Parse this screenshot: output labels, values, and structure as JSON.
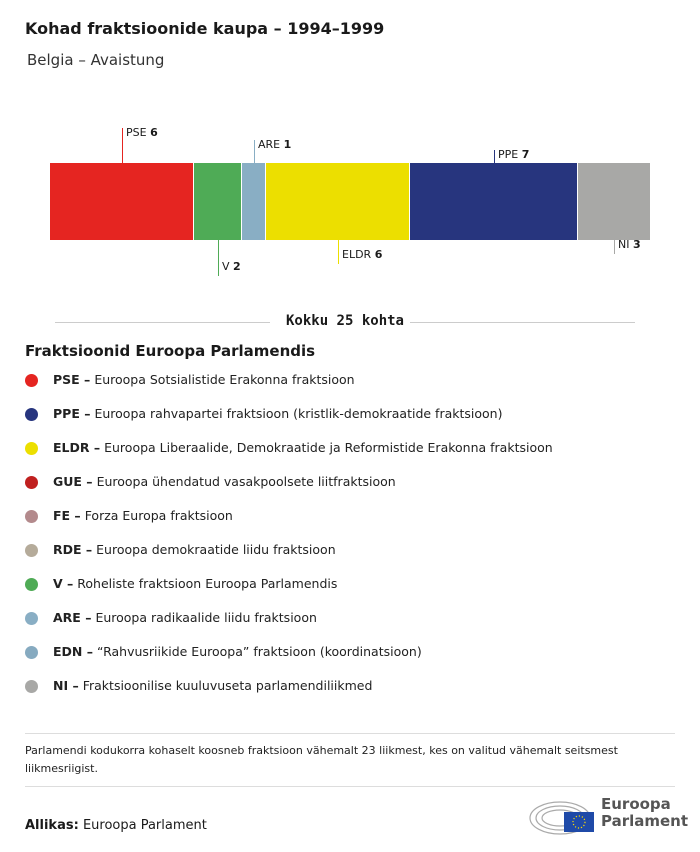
{
  "title": "Kohad fraktsioonide kaupa – 1994–1999",
  "subtitle": "Belgia – Avaistung",
  "chart_data": {
    "type": "stacked-bar",
    "title": "Kohad fraktsioonide kaupa – 1994–1999",
    "subtitle": "Belgia – Avaistung",
    "total_label": "Kokku 25 kohta",
    "total": 25,
    "segments": [
      {
        "name": "PSE",
        "value": 6,
        "color": "#e52521"
      },
      {
        "name": "V",
        "value": 2,
        "color": "#4fab56"
      },
      {
        "name": "ARE",
        "value": 1,
        "color": "#89aec4"
      },
      {
        "name": "ELDR",
        "value": 6,
        "color": "#ecdf00"
      },
      {
        "name": "PPE",
        "value": 7,
        "color": "#27357e"
      },
      {
        "name": "NI",
        "value": 3,
        "color": "#a8a8a6"
      }
    ]
  },
  "legend": {
    "title": "Fraktsioonid Euroopa Parlamendis",
    "items": [
      {
        "code": "PSE –",
        "desc": "Euroopa Sotsialistide Erakonna fraktsioon",
        "color": "#e52521"
      },
      {
        "code": "PPE –",
        "desc": "Euroopa rahvapartei fraktsioon (kristlik-demokraatide fraktsioon)",
        "color": "#27357e"
      },
      {
        "code": "ELDR –",
        "desc": "Euroopa Liberaalide, Demokraatide ja Reformistide Erakonna fraktsioon",
        "color": "#ecdf00"
      },
      {
        "code": "GUE –",
        "desc": "Euroopa ühendatud vasakpoolsete liitfraktsioon",
        "color": "#c0201f"
      },
      {
        "code": "FE –",
        "desc": "Forza Europa fraktsioon",
        "color": "#b38a8c"
      },
      {
        "code": "RDE –",
        "desc": "Euroopa demokraatide liidu fraktsioon",
        "color": "#b5ab9a"
      },
      {
        "code": "V –",
        "desc": "Roheliste fraktsioon Euroopa Parlamendis",
        "color": "#4fab56"
      },
      {
        "code": "ARE –",
        "desc": "Euroopa radikaalide liidu fraktsioon",
        "color": "#89aec4"
      },
      {
        "code": "EDN –",
        "desc": "“Rahvusriikide Euroopa” fraktsioon (koordinatsioon)",
        "color": "#86aac0"
      },
      {
        "code": "NI –",
        "desc": "Fraktsioonilise kuuluvuseta parlamendiliikmed",
        "color": "#a8a8a6"
      }
    ]
  },
  "note": "Parlamendi kodukorra kohaselt koosneb fraktsioon vähemalt 23 liikmest, kes on valitud vähemalt seitsmest liikmesriigist.",
  "source": {
    "label": "Allikas:",
    "value": "Euroopa Parlament"
  },
  "logo": {
    "line1": "Euroopa",
    "line2": "Parlament"
  }
}
